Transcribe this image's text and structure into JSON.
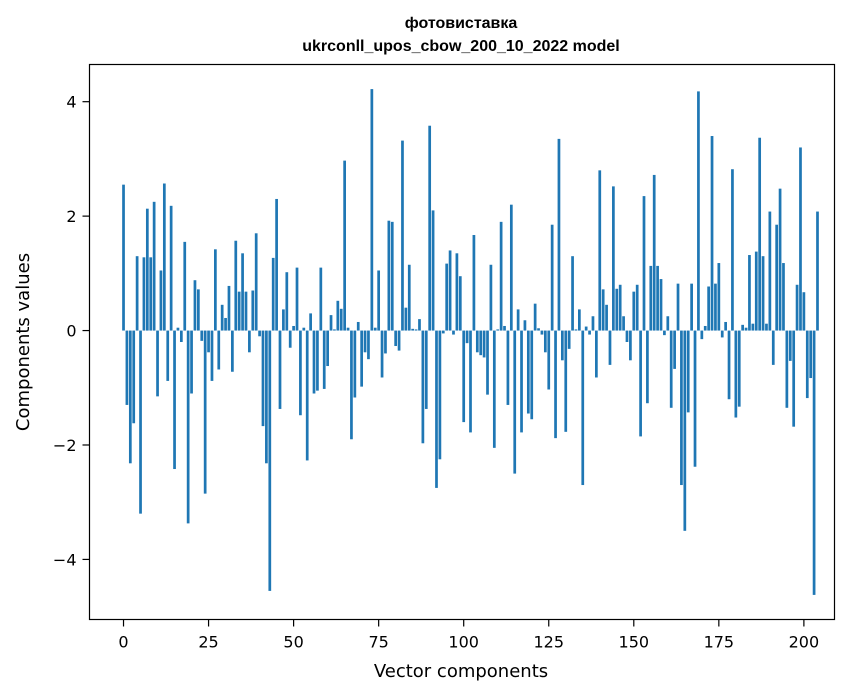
{
  "chart_data": {
    "type": "bar",
    "title": "фотовиставка",
    "subtitle": "ukrconll_upos_cbow_200_10_2022 model",
    "xlabel": "Vector components",
    "ylabel": "Components values",
    "xlim": [
      -10,
      209
    ],
    "ylim": [
      -5.05,
      4.65
    ],
    "xticks": [
      0,
      25,
      50,
      75,
      100,
      125,
      150,
      175,
      200
    ],
    "yticks": [
      -4,
      -2,
      0,
      2,
      4
    ],
    "xtick_labels": [
      "0",
      "25",
      "50",
      "75",
      "100",
      "125",
      "150",
      "175",
      "200"
    ],
    "ytick_labels": [
      "−4",
      "−2",
      "0",
      "2",
      "4"
    ],
    "grid": false,
    "bar_color": "#1f77b4",
    "values": [
      2.55,
      -1.3,
      -2.32,
      -1.62,
      1.3,
      -3.2,
      1.28,
      2.13,
      1.28,
      2.25,
      -1.15,
      1.05,
      2.57,
      -0.88,
      2.18,
      -2.42,
      0.05,
      -0.2,
      1.55,
      -3.37,
      -1.1,
      0.88,
      0.72,
      -0.18,
      -2.85,
      -0.38,
      -0.88,
      1.42,
      -0.68,
      0.45,
      0.22,
      0.78,
      -0.72,
      1.57,
      0.68,
      1.35,
      0.68,
      -0.38,
      0.7,
      1.7,
      -0.1,
      -1.67,
      -2.32,
      -4.55,
      1.27,
      2.3,
      -1.37,
      0.37,
      1.02,
      -0.3,
      0.08,
      1.1,
      -1.48,
      0.05,
      -2.27,
      0.3,
      -1.1,
      -1.05,
      1.1,
      -1.02,
      -0.62,
      0.27,
      0.02,
      0.52,
      0.38,
      2.97,
      0.05,
      -1.9,
      -1.17,
      0.15,
      -0.98,
      -0.38,
      -0.5,
      4.22,
      0.05,
      1.05,
      -0.82,
      -0.4,
      1.92,
      1.9,
      -0.27,
      -0.35,
      3.32,
      0.4,
      1.15,
      0.03,
      0.02,
      0.2,
      -1.97,
      -1.37,
      3.58,
      2.1,
      -2.75,
      -2.25,
      -0.05,
      1.17,
      1.4,
      -0.07,
      1.35,
      0.95,
      -1.6,
      -0.22,
      -1.78,
      1.67,
      -0.38,
      -0.43,
      -0.47,
      -1.12,
      1.15,
      -2.05,
      0.02,
      1.9,
      0.08,
      -1.3,
      2.2,
      -2.5,
      0.37,
      -1.78,
      0.18,
      -1.45,
      -1.55,
      0.47,
      0.04,
      -0.07,
      -0.38,
      -1.03,
      1.85,
      -1.88,
      3.35,
      -0.52,
      -1.77,
      -0.32,
      1.3,
      0.02,
      0.37,
      -2.7,
      0.07,
      -0.07,
      0.25,
      -0.82,
      2.8,
      0.72,
      0.45,
      -0.6,
      2.52,
      0.73,
      0.8,
      0.25,
      -0.2,
      -0.52,
      0.68,
      0.8,
      -1.85,
      2.35,
      -1.27,
      1.13,
      2.72,
      1.13,
      0.9,
      -0.08,
      0.25,
      -1.35,
      -0.67,
      0.82,
      -2.7,
      -3.5,
      -1.43,
      0.82,
      -2.38,
      4.18,
      -0.15,
      0.08,
      0.77,
      3.4,
      0.82,
      1.18,
      -0.12,
      0.15,
      -1.2,
      2.82,
      -1.52,
      -1.33,
      0.1,
      0.05,
      1.32,
      0.12,
      1.38,
      3.37,
      1.3,
      0.12,
      2.08,
      -0.6,
      1.85,
      2.48,
      1.18,
      -1.35,
      -0.53,
      -1.68,
      0.8,
      3.2,
      0.67,
      -1.18,
      -0.83,
      -4.62,
      2.08
    ]
  }
}
